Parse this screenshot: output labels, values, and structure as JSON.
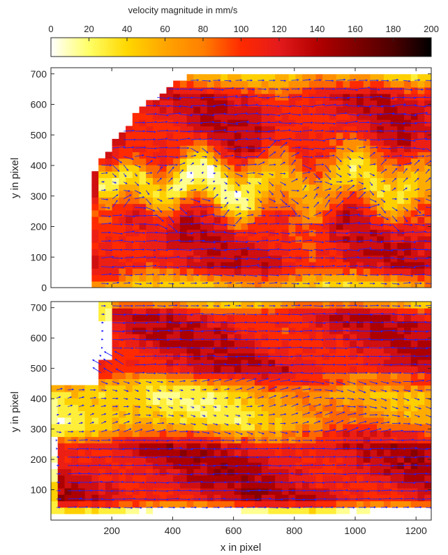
{
  "colorbar": {
    "title": "velocity magnitude in mm/s",
    "range": [
      0,
      200
    ],
    "ticks": [
      0,
      20,
      40,
      60,
      80,
      100,
      120,
      140,
      160,
      180,
      200
    ],
    "colormap": [
      "#ffffff",
      "#ffff66",
      "#ffd700",
      "#ffa500",
      "#ff7f00",
      "#ff2a00",
      "#e41a1c",
      "#b30000",
      "#800000",
      "#4d0000",
      "#000000"
    ]
  },
  "chart_data": [
    {
      "type": "heatmap",
      "title": "",
      "xlabel": "",
      "ylabel": "y in pixel",
      "xlim": [
        0,
        1250
      ],
      "ylim": [
        0,
        720
      ],
      "xticks": [
        200,
        400,
        600,
        800,
        1000,
        1200
      ],
      "yticks": [
        0,
        100,
        200,
        300,
        400,
        500,
        600,
        700
      ],
      "show_xtick_labels": false,
      "vector_color": "#1f1fff",
      "domain_polygon": [
        [
          140,
          10
        ],
        [
          1250,
          10
        ],
        [
          1250,
          690
        ],
        [
          440,
          690
        ],
        [
          300,
          590
        ],
        [
          200,
          470
        ],
        [
          140,
          370
        ]
      ],
      "wake": {
        "x0": 180,
        "y_center": 340,
        "amplitude": 45,
        "half_width": 80,
        "wavelength": 250,
        "speed_min": 10,
        "speed_free": 120
      },
      "flow": "uniform stream with an oscillating low-speed wake starting behind an obstacle at x≈180, y≈340"
    },
    {
      "type": "heatmap",
      "title": "",
      "xlabel": "x in pixel",
      "ylabel": "y in pixel",
      "xlim": [
        0,
        1250
      ],
      "ylim": [
        0,
        720
      ],
      "xticks": [
        200,
        400,
        600,
        800,
        1000,
        1200
      ],
      "yticks": [
        100,
        200,
        300,
        400,
        500,
        600,
        700
      ],
      "show_xtick_labels": true,
      "vector_color": "#1f1fff",
      "upper_band": {
        "x_start": 200,
        "y_min": 460,
        "y_max": 710,
        "speed": 120
      },
      "lower_band": {
        "x_start": 20,
        "y_min": 40,
        "y_max": 280,
        "speed": 125
      },
      "middle_zone": {
        "y_center": 370,
        "speed_left": 20,
        "speed_right": 75
      },
      "flow": "two fast jets (upper and lower) separated by a slow middle region that accelerates downstream"
    }
  ]
}
